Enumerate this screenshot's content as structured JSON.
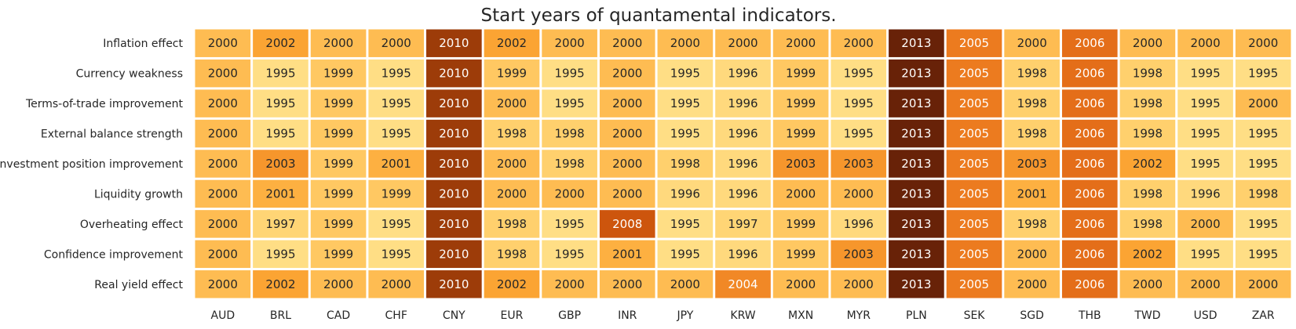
{
  "chart_data": {
    "type": "heatmap",
    "title": "Start years of quantamental indicators.",
    "xlabel": "",
    "ylabel": "",
    "columns": [
      "AUD",
      "BRL",
      "CAD",
      "CHF",
      "CNY",
      "EUR",
      "GBP",
      "INR",
      "JPY",
      "KRW",
      "MXN",
      "MYR",
      "PLN",
      "SEK",
      "SGD",
      "THB",
      "TWD",
      "USD",
      "ZAR"
    ],
    "rows": [
      "Inflation effect",
      "Currency weakness",
      "Terms-of-trade improvement",
      "External balance strength",
      "Investment position improvement",
      "Liquidity growth",
      "Overheating effect",
      "Confidence improvement",
      "Real yield effect"
    ],
    "values": [
      [
        2000,
        2002,
        2000,
        2000,
        2010,
        2002,
        2000,
        2000,
        2000,
        2000,
        2000,
        2000,
        2013,
        2005,
        2000,
        2006,
        2000,
        2000,
        2000
      ],
      [
        2000,
        1995,
        1999,
        1995,
        2010,
        1999,
        1995,
        2000,
        1995,
        1996,
        1999,
        1995,
        2013,
        2005,
        1998,
        2006,
        1998,
        1995,
        1995
      ],
      [
        2000,
        1995,
        1999,
        1995,
        2010,
        2000,
        1995,
        2000,
        1995,
        1996,
        1999,
        1995,
        2013,
        2005,
        1998,
        2006,
        1998,
        1995,
        2000
      ],
      [
        2000,
        1995,
        1999,
        1995,
        2010,
        1998,
        1998,
        2000,
        1995,
        1996,
        1999,
        1995,
        2013,
        2005,
        1998,
        2006,
        1998,
        1995,
        1995
      ],
      [
        2000,
        2003,
        1999,
        2001,
        2010,
        2000,
        1998,
        2000,
        1998,
        1996,
        2003,
        2003,
        2013,
        2005,
        2003,
        2006,
        2002,
        1995,
        1995
      ],
      [
        2000,
        2001,
        1999,
        1999,
        2010,
        2000,
        2000,
        2000,
        1996,
        1996,
        2000,
        2000,
        2013,
        2005,
        2001,
        2006,
        1998,
        1996,
        1998
      ],
      [
        2000,
        1997,
        1999,
        1995,
        2010,
        1998,
        1995,
        2008,
        1995,
        1997,
        1999,
        1996,
        2013,
        2005,
        1998,
        2006,
        1998,
        2000,
        1995
      ],
      [
        2000,
        1995,
        1999,
        1995,
        2010,
        1998,
        1995,
        2001,
        1995,
        1996,
        1999,
        2003,
        2013,
        2005,
        2000,
        2006,
        2002,
        1995,
        1995
      ],
      [
        2000,
        2002,
        2000,
        2000,
        2010,
        2002,
        2000,
        2000,
        2000,
        2004,
        2000,
        2000,
        2013,
        2005,
        2000,
        2006,
        2000,
        2000,
        2000
      ]
    ],
    "colormap": "YlOrBr",
    "colorbar": false,
    "annotations": true,
    "grid": false
  }
}
